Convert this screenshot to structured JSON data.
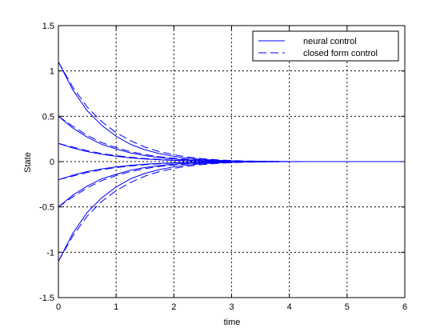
{
  "chart_data": {
    "type": "line",
    "title": "",
    "xlabel": "time",
    "ylabel": "State",
    "xlim": [
      0,
      6
    ],
    "ylim": [
      -1.5,
      1.5
    ],
    "xticks": [
      0,
      1,
      2,
      3,
      4,
      5,
      6
    ],
    "yticks": [
      -1.5,
      -1,
      -0.5,
      0,
      0.5,
      1,
      1.5
    ],
    "xtick_labels": [
      "0",
      "1",
      "2",
      "3",
      "4",
      "5",
      "6"
    ],
    "ytick_labels": [
      "-1.5",
      "-1",
      "-0.5",
      "0",
      "0.5",
      "1",
      "1.5"
    ],
    "grid": true,
    "legend_position": "top-right",
    "legend": [
      {
        "label": "neural control",
        "style": "solid"
      },
      {
        "label": "closed form control",
        "style": "dashed"
      }
    ],
    "line_color": "#0000ff",
    "grid_color": "#000000",
    "x": [
      0,
      0.25,
      0.5,
      0.75,
      1.0,
      1.25,
      1.5,
      1.75,
      2.0,
      2.25,
      2.5,
      2.75,
      3.0,
      3.25,
      3.5,
      3.75,
      4.0,
      4.5,
      5.0,
      5.5,
      6.0
    ],
    "series": [
      {
        "group": "neural control",
        "style": "solid",
        "values": [
          1.1,
          0.79,
          0.56,
          0.4,
          0.28,
          0.19,
          0.13,
          0.088,
          0.058,
          0.037,
          0.023,
          0.014,
          0.008,
          0.004,
          0.002,
          0.001,
          0,
          0,
          0,
          0,
          0
        ]
      },
      {
        "group": "neural control",
        "style": "solid",
        "values": [
          0.5,
          0.37,
          0.27,
          0.19,
          0.14,
          0.095,
          0.065,
          0.044,
          0.029,
          0.019,
          0.012,
          0.007,
          0.004,
          0.002,
          0.001,
          0,
          0,
          0,
          0,
          0,
          0
        ]
      },
      {
        "group": "neural control",
        "style": "solid",
        "values": [
          0.2,
          0.15,
          0.11,
          0.08,
          0.058,
          0.041,
          0.029,
          0.02,
          0.013,
          0.009,
          0.006,
          0.003,
          0.002,
          0.001,
          0,
          0,
          0,
          0,
          0,
          0,
          0
        ]
      },
      {
        "group": "neural control",
        "style": "solid",
        "values": [
          -0.2,
          -0.15,
          -0.11,
          -0.08,
          -0.058,
          -0.041,
          -0.029,
          -0.02,
          -0.013,
          -0.009,
          -0.006,
          -0.003,
          -0.002,
          -0.001,
          0,
          0,
          0,
          0,
          0,
          0,
          0
        ]
      },
      {
        "group": "neural control",
        "style": "solid",
        "values": [
          -0.5,
          -0.37,
          -0.27,
          -0.19,
          -0.14,
          -0.095,
          -0.065,
          -0.044,
          -0.029,
          -0.019,
          -0.012,
          -0.007,
          -0.004,
          -0.002,
          -0.001,
          0,
          0,
          0,
          0,
          0,
          0
        ]
      },
      {
        "group": "neural control",
        "style": "solid",
        "values": [
          -1.1,
          -0.79,
          -0.56,
          -0.4,
          -0.28,
          -0.19,
          -0.13,
          -0.088,
          -0.058,
          -0.037,
          -0.023,
          -0.014,
          -0.008,
          -0.004,
          -0.002,
          -0.001,
          0,
          0,
          0,
          0,
          0
        ]
      },
      {
        "group": "closed form control",
        "style": "dashed",
        "values": [
          1.1,
          0.82,
          0.6,
          0.44,
          0.32,
          0.23,
          0.16,
          0.11,
          0.075,
          0.05,
          0.032,
          0.02,
          0.012,
          0.007,
          0.004,
          0.002,
          0.001,
          0,
          0,
          0,
          0
        ]
      },
      {
        "group": "closed form control",
        "style": "dashed",
        "values": [
          0.5,
          0.39,
          0.29,
          0.21,
          0.155,
          0.11,
          0.078,
          0.054,
          0.037,
          0.025,
          0.016,
          0.01,
          0.006,
          0.004,
          0.002,
          0.001,
          0,
          0,
          0,
          0,
          0
        ]
      },
      {
        "group": "closed form control",
        "style": "dashed",
        "values": [
          0.2,
          0.16,
          0.12,
          0.09,
          0.066,
          0.048,
          0.034,
          0.024,
          0.016,
          0.011,
          0.007,
          0.004,
          0.003,
          0.002,
          0.001,
          0,
          0,
          0,
          0,
          0,
          0
        ]
      },
      {
        "group": "closed form control",
        "style": "dashed",
        "values": [
          -0.2,
          -0.16,
          -0.12,
          -0.09,
          -0.066,
          -0.048,
          -0.034,
          -0.024,
          -0.016,
          -0.011,
          -0.007,
          -0.004,
          -0.003,
          -0.002,
          -0.001,
          0,
          0,
          0,
          0,
          0,
          0
        ]
      },
      {
        "group": "closed form control",
        "style": "dashed",
        "values": [
          -0.5,
          -0.39,
          -0.29,
          -0.21,
          -0.155,
          -0.11,
          -0.078,
          -0.054,
          -0.037,
          -0.025,
          -0.016,
          -0.01,
          -0.006,
          -0.004,
          -0.002,
          -0.001,
          0,
          0,
          0,
          0,
          0
        ]
      },
      {
        "group": "closed form control",
        "style": "dashed",
        "values": [
          -1.1,
          -0.82,
          -0.6,
          -0.44,
          -0.32,
          -0.23,
          -0.16,
          -0.11,
          -0.075,
          -0.05,
          -0.032,
          -0.02,
          -0.012,
          -0.007,
          -0.004,
          -0.002,
          -0.001,
          0,
          0,
          0,
          0
        ]
      }
    ]
  }
}
